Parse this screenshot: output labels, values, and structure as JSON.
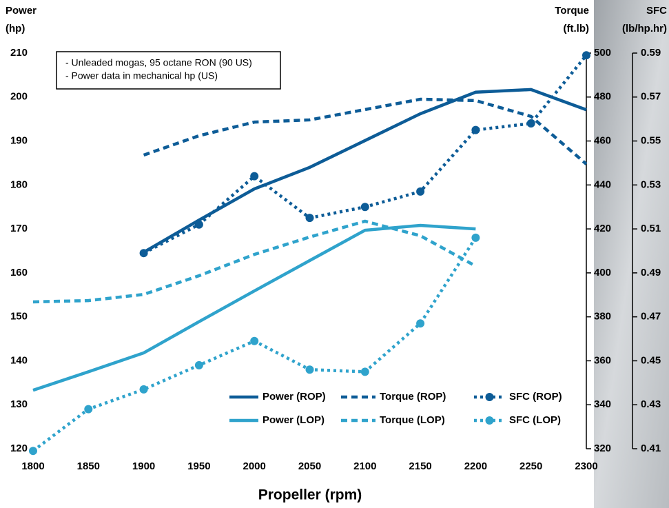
{
  "chart_data": {
    "type": "line",
    "xlabel": "Propeller (rpm)",
    "ylabel": [
      "Power",
      "(hp)"
    ],
    "y2label": [
      "Torque",
      "(ft.lb)"
    ],
    "y3label": [
      "SFC",
      "(lb/hp.hr)"
    ],
    "annotation": [
      "- Unleaded mogas, 95 octane RON (90 US)",
      "- Power data in mechanical hp (US)"
    ],
    "x": [
      1800,
      1850,
      1900,
      1950,
      2000,
      2050,
      2100,
      2150,
      2200,
      2250,
      2300
    ],
    "xlim": [
      1800,
      2300
    ],
    "xticks": [
      1800,
      1850,
      1900,
      1950,
      2000,
      2050,
      2100,
      2150,
      2200,
      2250,
      2300
    ],
    "ylim": [
      120,
      210
    ],
    "yticks": [
      120,
      130,
      140,
      150,
      160,
      170,
      180,
      190,
      200,
      210
    ],
    "y2lim": [
      320,
      500
    ],
    "y2ticks": [
      320,
      340,
      360,
      380,
      400,
      420,
      440,
      460,
      480,
      500
    ],
    "y3lim": [
      0.41,
      0.59
    ],
    "y3ticks": [
      0.41,
      0.43,
      0.45,
      0.47,
      0.49,
      0.51,
      0.53,
      0.55,
      0.57,
      0.59
    ],
    "series": [
      {
        "name": "Power (ROP)",
        "color": "#0d5c97",
        "style": "solid",
        "axis": "y",
        "values": [
          null,
          null,
          164.7,
          172,
          179.1,
          184,
          190.1,
          196.2,
          201.1,
          201.7,
          197.1
        ]
      },
      {
        "name": "Torque (ROP)",
        "color": "#0d5c97",
        "style": "dash",
        "axis": "y2",
        "values": [
          null,
          null,
          453.6,
          462.4,
          468.6,
          469.6,
          474.3,
          479,
          478.4,
          471.2,
          449.5
        ]
      },
      {
        "name": "SFC (ROP)",
        "color": "#0d5c97",
        "style": "dot",
        "axis": "y3",
        "values": [
          null,
          null,
          0.499,
          0.512,
          0.534,
          0.515,
          0.52,
          0.527,
          0.555,
          0.558,
          0.589
        ]
      },
      {
        "name": "Power (LOP)",
        "color": "#2fa3cc",
        "style": "solid",
        "axis": "y",
        "values": [
          133.3,
          137.5,
          141.8,
          148.9,
          155.9,
          162.8,
          169.7,
          170.8,
          170,
          null,
          null
        ]
      },
      {
        "name": "Torque (LOP)",
        "color": "#2fa3cc",
        "style": "dash",
        "axis": "y2",
        "values": [
          386.8,
          387.4,
          390.2,
          398.7,
          408.4,
          416.3,
          423.5,
          416.9,
          403.1,
          null,
          null
        ]
      },
      {
        "name": "SFC (LOP)",
        "color": "#2fa3cc",
        "style": "dot",
        "axis": "y3",
        "values": [
          0.409,
          0.428,
          0.437,
          0.448,
          0.459,
          0.446,
          0.445,
          0.467,
          0.506,
          null,
          null
        ]
      }
    ]
  }
}
